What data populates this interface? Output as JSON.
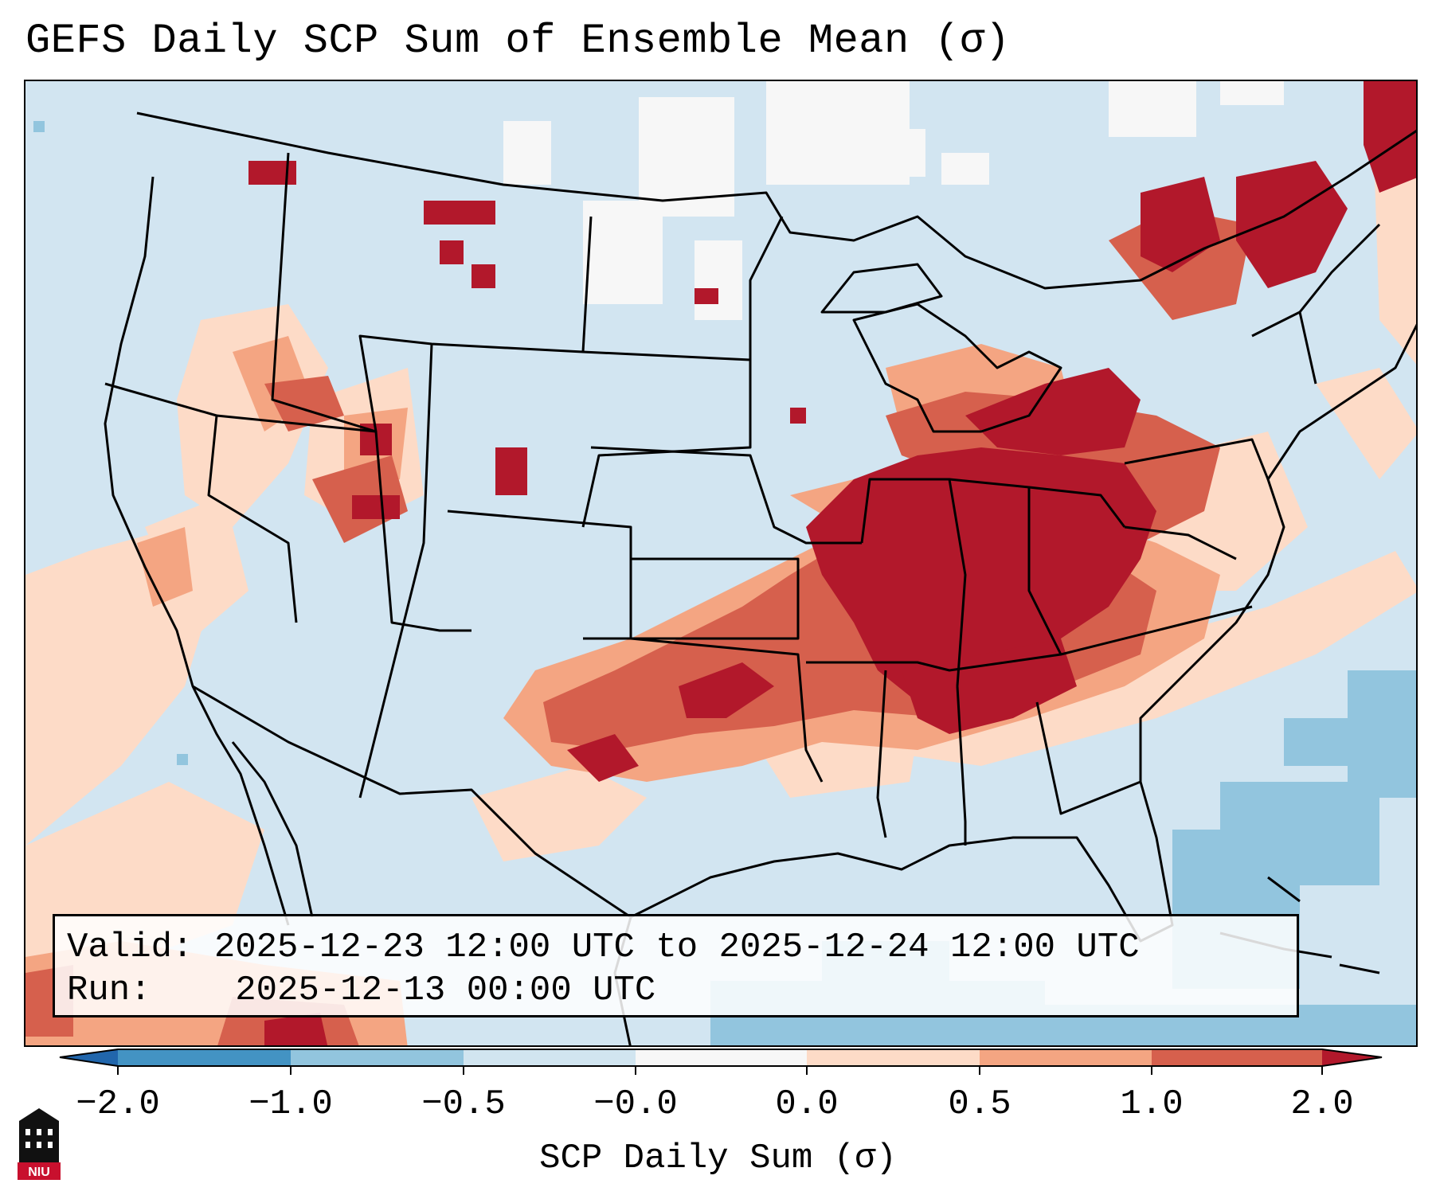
{
  "title": "GEFS Daily SCP Sum of Ensemble Mean (σ)",
  "info": {
    "valid_label": "Valid:",
    "valid_value": "2025-12-23 12:00 UTC to 2025-12-24 12:00 UTC",
    "run_label": "Run:",
    "run_value": "2025-12-13 00:00 UTC"
  },
  "colorbar": {
    "label": "SCP Daily Sum (σ)",
    "ticks": [
      "−2.0",
      "−1.0",
      "−0.5",
      "−0.0",
      "0.0",
      "0.5",
      "1.0",
      "2.0"
    ],
    "colors": [
      "#4393c3",
      "#92c5de",
      "#d1e5f0",
      "#f7f7f7",
      "#fddbc7",
      "#f4a582",
      "#d6604d",
      "#b2182b"
    ]
  },
  "logo": {
    "text": "NIU",
    "color": "#c8102e"
  }
}
